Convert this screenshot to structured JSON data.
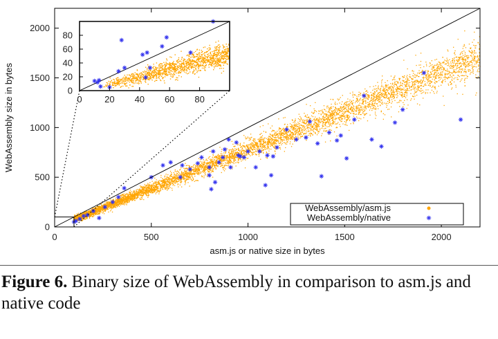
{
  "caption": {
    "label": "Figure 6.",
    "text": "Binary size of WebAssembly in comparison to asm.js and native code"
  },
  "chart_data": [
    {
      "type": "scatter",
      "title": "",
      "xlabel": "asm.js or native size in bytes",
      "ylabel": "WebAssembly size in bytes",
      "xlim": [
        0,
        2200
      ],
      "ylim": [
        0,
        2200
      ],
      "xticks": [
        "0",
        "500",
        "1000",
        "1500",
        "2000"
      ],
      "yticks": [
        "0",
        "500",
        "1000",
        "1500",
        "2000"
      ],
      "xtick_values": [
        0,
        500,
        1000,
        1500,
        2000
      ],
      "ytick_values": [
        0,
        500,
        1000,
        1500,
        2000
      ],
      "grid": false,
      "legend_position": "bottom-right",
      "reference_line": "y = x",
      "zoom_box": {
        "x": [
          0,
          100
        ],
        "y": [
          0,
          100
        ]
      },
      "series": [
        {
          "name": "WebAssembly/asm.js",
          "color": "#ffa500",
          "marker": "dot",
          "approx_trend": "y ≈ 0.78·x, dense cloud of several thousand points from x≈100 to x≈2200",
          "sample_points": [
            [
              120,
              90
            ],
            [
              200,
              160
            ],
            [
              300,
              240
            ],
            [
              400,
              315
            ],
            [
              500,
              395
            ],
            [
              600,
              470
            ],
            [
              700,
              555
            ],
            [
              800,
              630
            ],
            [
              900,
              710
            ],
            [
              1000,
              790
            ],
            [
              1100,
              870
            ],
            [
              1200,
              945
            ],
            [
              1300,
              1020
            ],
            [
              1400,
              1100
            ],
            [
              1500,
              1180
            ],
            [
              1600,
              1260
            ],
            [
              1700,
              1340
            ],
            [
              1800,
              1410
            ],
            [
              1900,
              1490
            ],
            [
              2000,
              1570
            ],
            [
              2100,
              1650
            ],
            [
              2200,
              1720
            ]
          ]
        },
        {
          "name": "WebAssembly/native",
          "color": "#3333ee",
          "marker": "asterisk",
          "points": [
            [
              100,
              50
            ],
            [
              110,
              60
            ],
            [
              130,
              80
            ],
            [
              150,
              110
            ],
            [
              170,
              120
            ],
            [
              200,
              160
            ],
            [
              230,
              90
            ],
            [
              260,
              200
            ],
            [
              300,
              250
            ],
            [
              330,
              300
            ],
            [
              360,
              390
            ],
            [
              500,
              500
            ],
            [
              560,
              620
            ],
            [
              600,
              650
            ],
            [
              650,
              500
            ],
            [
              700,
              580
            ],
            [
              760,
              700
            ],
            [
              800,
              600
            ],
            [
              820,
              760
            ],
            [
              850,
              650
            ],
            [
              880,
              780
            ],
            [
              900,
              880
            ],
            [
              940,
              850
            ],
            [
              950,
              720
            ],
            [
              980,
              700
            ],
            [
              1000,
              760
            ],
            [
              1040,
              600
            ],
            [
              1060,
              760
            ],
            [
              1100,
              720
            ],
            [
              1120,
              520
            ],
            [
              1130,
              710
            ],
            [
              1150,
              800
            ],
            [
              1200,
              980
            ],
            [
              1250,
              880
            ],
            [
              1300,
              900
            ],
            [
              1320,
              1060
            ],
            [
              1360,
              840
            ],
            [
              1420,
              950
            ],
            [
              1460,
              870
            ],
            [
              1480,
              920
            ],
            [
              1510,
              690
            ],
            [
              1550,
              1080
            ],
            [
              1600,
              1320
            ],
            [
              1640,
              880
            ],
            [
              1690,
              810
            ],
            [
              1760,
              1050
            ],
            [
              1800,
              1180
            ],
            [
              1910,
              1550
            ],
            [
              2100,
              1080
            ],
            [
              1380,
              510
            ],
            [
              910,
              600
            ],
            [
              660,
              620
            ],
            [
              960,
              710
            ],
            [
              1090,
              420
            ],
            [
              740,
              640
            ],
            [
              800,
              520
            ],
            [
              830,
              450
            ],
            [
              870,
              700
            ],
            [
              810,
              380
            ]
          ]
        }
      ]
    },
    {
      "type": "scatter",
      "title": "",
      "role": "inset zoom of region 0–100",
      "xlim": [
        0,
        100
      ],
      "ylim": [
        0,
        100
      ],
      "xticks": [
        "0",
        "20",
        "40",
        "60",
        "80"
      ],
      "yticks": [
        "0",
        "20",
        "40",
        "60",
        "80"
      ],
      "xtick_values": [
        0,
        20,
        40,
        60,
        80
      ],
      "ytick_values": [
        0,
        20,
        40,
        60,
        80
      ],
      "reference_line": "y = x",
      "series": [
        {
          "name": "WebAssembly/asm.js",
          "color": "#ffa500",
          "marker": "dot",
          "approx_trend": "y ≈ 0.55·x − 2, wedge from x≈15 to x≈100"
        },
        {
          "name": "WebAssembly/native",
          "color": "#3333ee",
          "marker": "asterisk",
          "points": [
            [
              10,
              14
            ],
            [
              12,
              12
            ],
            [
              14,
              6
            ],
            [
              20,
              5
            ],
            [
              26,
              28
            ],
            [
              28,
              73
            ],
            [
              30,
              33
            ],
            [
              42,
              52
            ],
            [
              44,
              19
            ],
            [
              45,
              55
            ],
            [
              55,
              64
            ],
            [
              58,
              77
            ],
            [
              74,
              55
            ],
            [
              89,
              106
            ],
            [
              13,
              15
            ],
            [
              47,
              33
            ]
          ]
        }
      ]
    }
  ]
}
